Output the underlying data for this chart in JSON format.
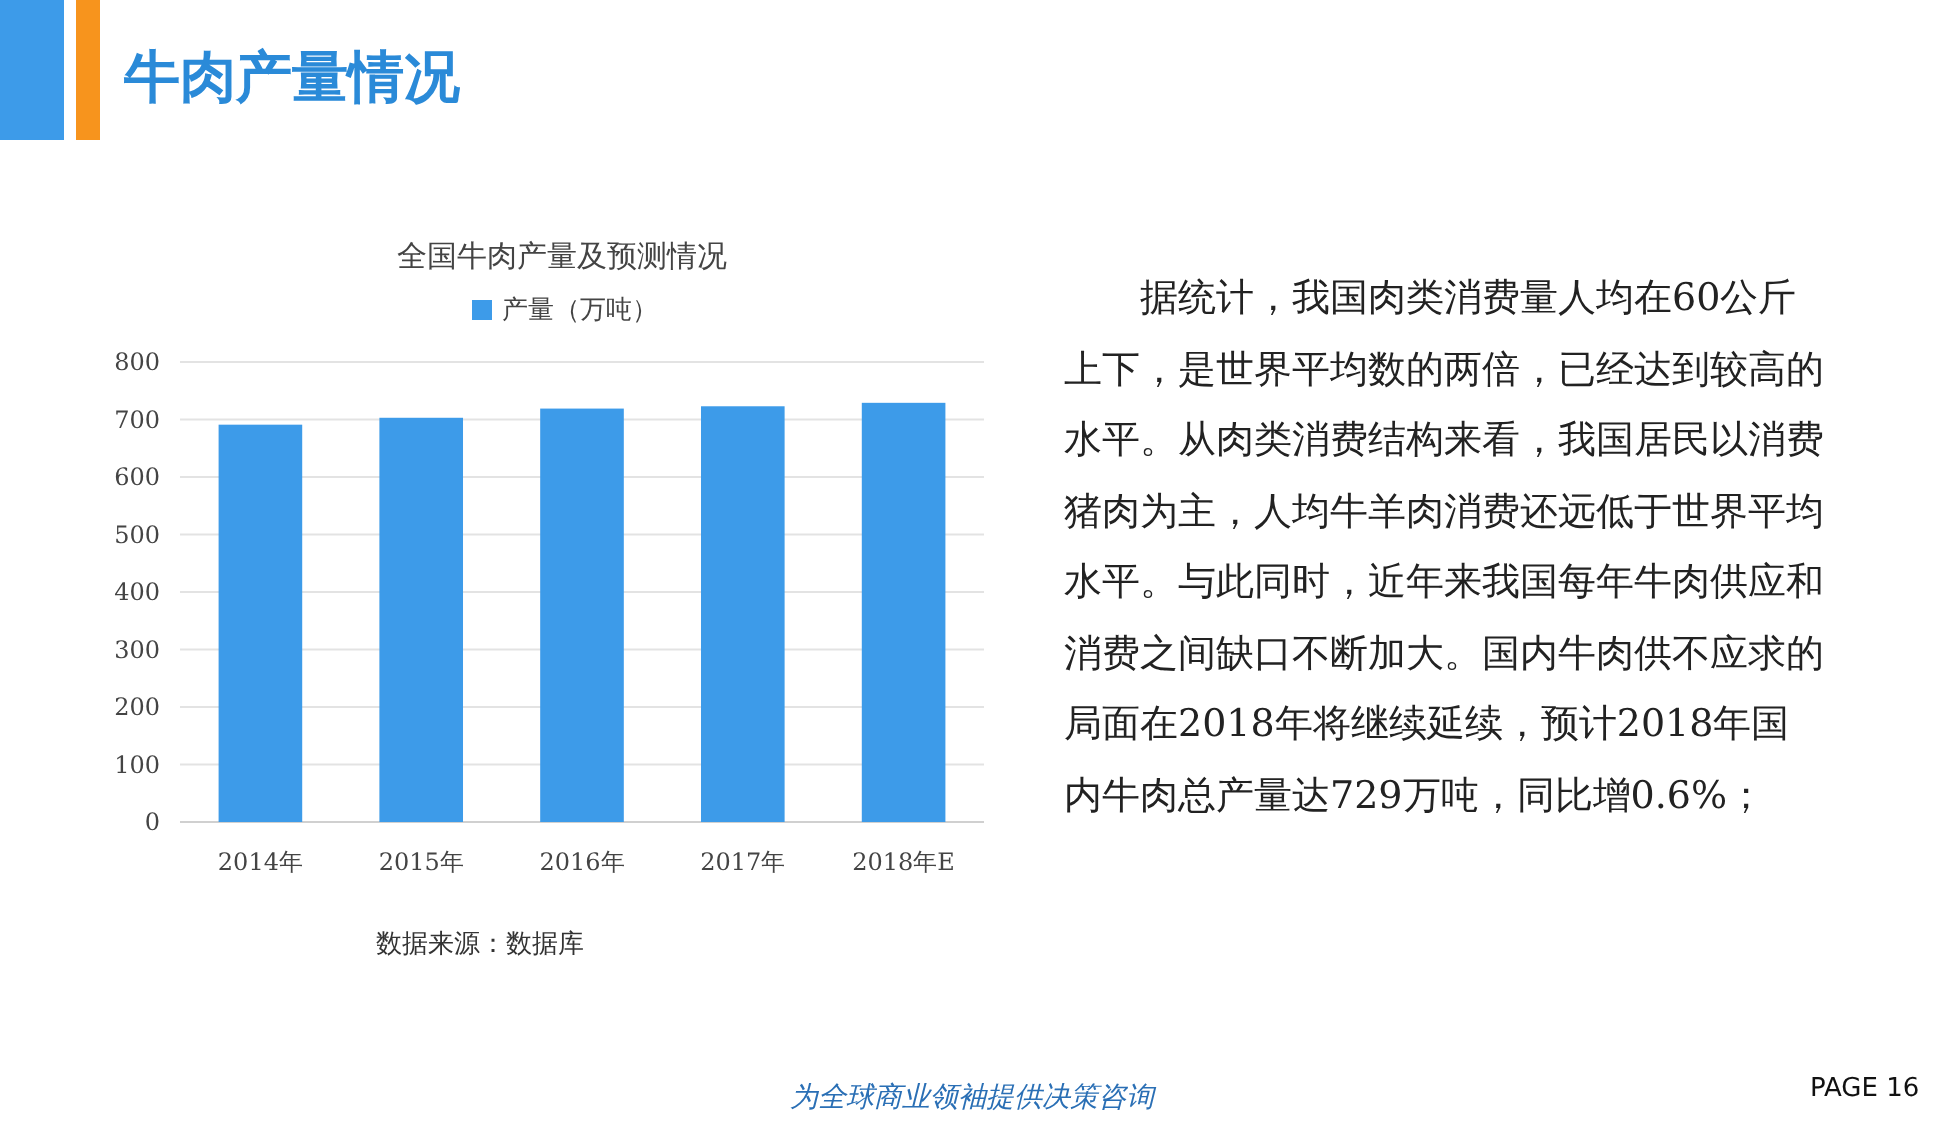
{
  "chart_data": {
    "type": "bar",
    "title": "全国牛肉产量及预测情况",
    "categories": [
      "2014年",
      "2015年",
      "2016年",
      "2017年",
      "2018年E"
    ],
    "series": [
      {
        "name": "产量（万吨）",
        "color": "#3d9be9",
        "values": [
          691,
          703,
          719,
          723,
          729
        ]
      }
    ],
    "ylim": [
      0,
      800
    ],
    "yticks": [
      0,
      100,
      200,
      300,
      400,
      500,
      600,
      700,
      800
    ],
    "grid": "y",
    "legend": "top",
    "annotations": [
      "牛肉产量情况",
      "据统计，我国肉类消费量人均在60公斤上下，是世界平均数的两倍，已经达到较高的水平。从肉类消费结构来看，我国居民以消费猪肉为主，人均牛羊肉消费还远低于世界平均水平。与此同时，近年来我国每年牛肉供应和消费之间缺口不断加大。国内牛肉供不应求的局面在2018年将继续延续，预计2018年国内牛肉总产量达729万吨，同比增0.6%；",
      "数据来源：数据库",
      "为全球商业领袖提供决策咨询",
      "PAGE 16"
    ]
  }
}
